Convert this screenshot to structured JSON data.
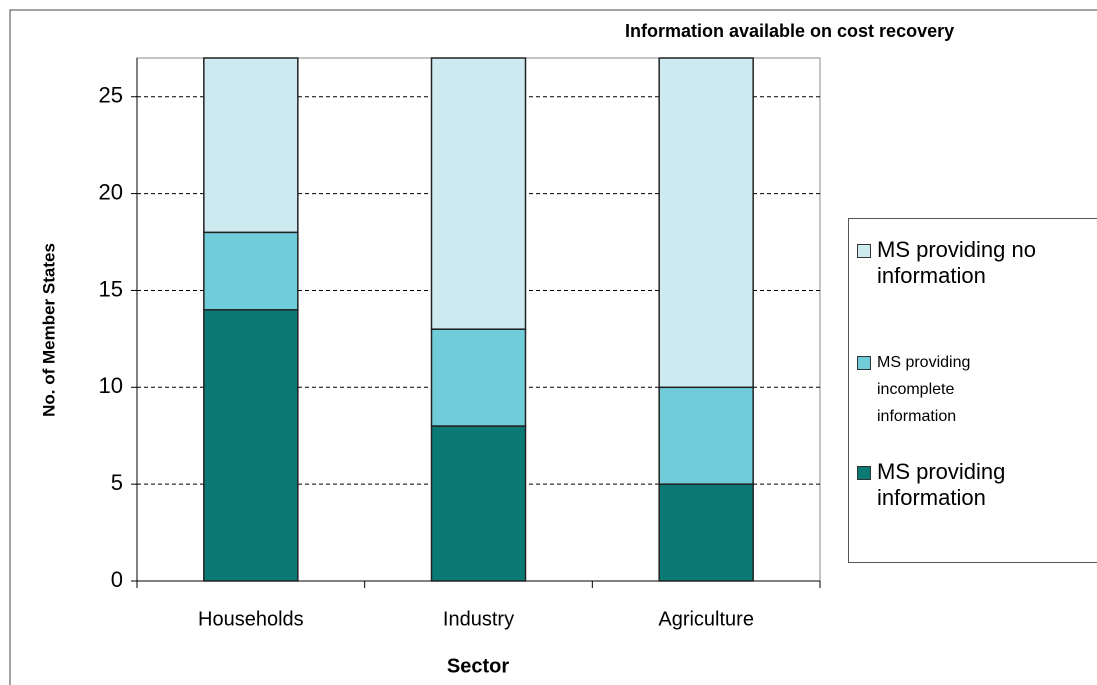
{
  "chart_data": {
    "type": "stacked_bar",
    "title": "Information available on cost recovery",
    "x_label": "Sector",
    "y_label": "No. of Member States",
    "categories": [
      "Households",
      "Industry",
      "Agriculture"
    ],
    "series": [
      {
        "name": "MS providing information",
        "color": "#0b7a74",
        "values": [
          14,
          8,
          5
        ]
      },
      {
        "name": "MS providing incomplete information",
        "color": "#6fccd8",
        "values": [
          4,
          5,
          5
        ]
      },
      {
        "name": "MS providing no information",
        "color": "#cdeaf1",
        "values": [
          9,
          14,
          17
        ]
      }
    ],
    "ylim": [
      0,
      27
    ],
    "yticks": [
      0,
      5,
      10,
      15,
      20,
      25
    ],
    "grid": true
  }
}
